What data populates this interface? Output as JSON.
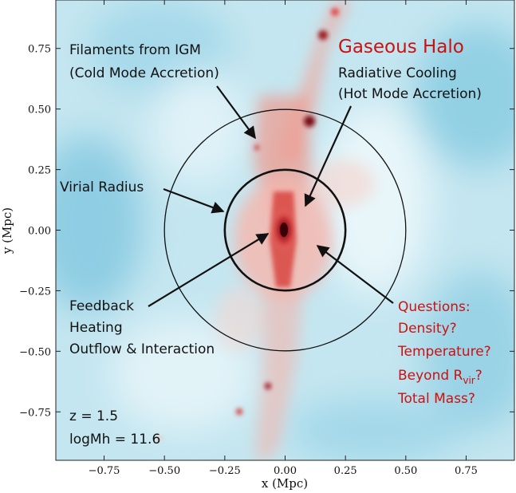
{
  "axes": {
    "xlabel": "x (Mpc)",
    "ylabel": "y (Mpc)",
    "xlim": [
      -0.95,
      0.95
    ],
    "ylim": [
      -0.95,
      0.95
    ],
    "x_ticks": [
      {
        "value": -0.75,
        "label": "−0.75"
      },
      {
        "value": -0.5,
        "label": "−0.50"
      },
      {
        "value": -0.25,
        "label": "−0.25"
      },
      {
        "value": 0.0,
        "label": "0.00"
      },
      {
        "value": 0.25,
        "label": "0.25"
      },
      {
        "value": 0.5,
        "label": "0.50"
      },
      {
        "value": 0.75,
        "label": "0.75"
      }
    ],
    "y_ticks": [
      {
        "value": 0.75,
        "label": "0.75"
      },
      {
        "value": 0.5,
        "label": "0.50"
      },
      {
        "value": 0.25,
        "label": "0.25"
      },
      {
        "value": 0.0,
        "label": "0.00"
      },
      {
        "value": -0.25,
        "label": "−0.25"
      },
      {
        "value": -0.5,
        "label": "−0.50"
      },
      {
        "value": -0.75,
        "label": "−0.75"
      }
    ]
  },
  "circles": {
    "inner_radius_mpc": 0.25,
    "outer_radius_mpc": 0.5
  },
  "annotations": {
    "gaseous_halo": "Gaseous Halo",
    "radiative_cooling": [
      "Radiative Cooling",
      "(Hot Mode Accretion)"
    ],
    "filaments": [
      "Filaments from IGM",
      "(Cold Mode Accretion)"
    ],
    "virial_radius": "Virial Radius",
    "feedback": [
      "Feedback",
      "Heating",
      "Outflow & Interaction"
    ],
    "questions": {
      "title": "Questions:",
      "density": "Density?",
      "temperature": "Temperature?",
      "beyond_prefix": "Beyond R",
      "beyond_subscript": "vir",
      "beyond_suffix": "?",
      "total_mass": "Total Mass?"
    },
    "redshift": "z = 1.5",
    "halo_mass": "logMh = 11.6"
  },
  "colors": {
    "annotation_red": "#cc1111",
    "text_black": "#111111",
    "background_blue": "#bfe4ef",
    "gas_red": "#e03a3a"
  }
}
